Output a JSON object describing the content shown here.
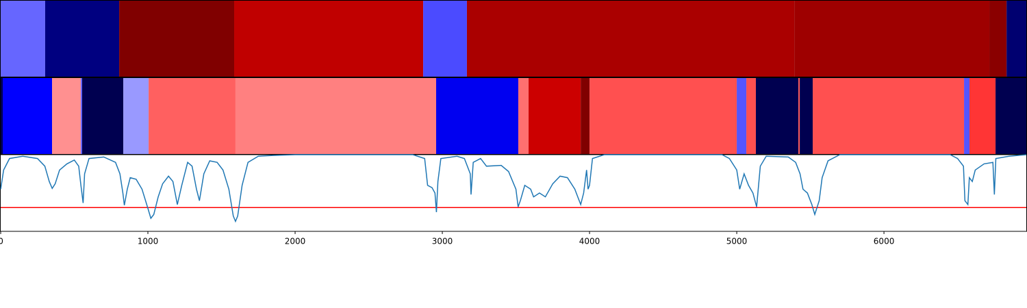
{
  "chart_data": {
    "type": "segmentation",
    "xlim": [
      0,
      6967
    ],
    "xticks": [
      0,
      1000,
      2000,
      3000,
      4000,
      5000,
      6000
    ],
    "rows": [
      {
        "segments": [
          {
            "start": 0,
            "end": 302,
            "color": "#6666ff"
          },
          {
            "start": 302,
            "end": 805,
            "color": "#000080"
          },
          {
            "start": 805,
            "end": 1586,
            "color": "#800000"
          },
          {
            "start": 1586,
            "end": 2870,
            "color": "#c00000"
          },
          {
            "start": 2870,
            "end": 3167,
            "color": "#4b4bff"
          },
          {
            "start": 3167,
            "end": 5391,
            "color": "#aa0000"
          },
          {
            "start": 5391,
            "end": 6716,
            "color": "#9e0000"
          },
          {
            "start": 6716,
            "end": 6833,
            "color": "#8a0000"
          },
          {
            "start": 6833,
            "end": 6967,
            "color": "#000070"
          }
        ]
      },
      {
        "segments": [
          {
            "start": 0,
            "end": 14,
            "color": "#000050"
          },
          {
            "start": 14,
            "end": 349,
            "color": "#0000ff"
          },
          {
            "start": 349,
            "end": 544,
            "color": "#ff9090"
          },
          {
            "start": 544,
            "end": 553,
            "color": "#6666ff"
          },
          {
            "start": 553,
            "end": 833,
            "color": "#000050"
          },
          {
            "start": 833,
            "end": 1005,
            "color": "#9999ff"
          },
          {
            "start": 1005,
            "end": 1595,
            "color": "#ff6060"
          },
          {
            "start": 1595,
            "end": 2958,
            "color": "#ff8080"
          },
          {
            "start": 2958,
            "end": 3516,
            "color": "#0000f0"
          },
          {
            "start": 3516,
            "end": 3586,
            "color": "#ff7070"
          },
          {
            "start": 3586,
            "end": 3940,
            "color": "#cc0000"
          },
          {
            "start": 3940,
            "end": 4000,
            "color": "#800000"
          },
          {
            "start": 4000,
            "end": 5000,
            "color": "#ff5050"
          },
          {
            "start": 5000,
            "end": 5065,
            "color": "#5555ff"
          },
          {
            "start": 5065,
            "end": 5130,
            "color": "#ff5050"
          },
          {
            "start": 5130,
            "end": 5419,
            "color": "#000050"
          },
          {
            "start": 5419,
            "end": 5428,
            "color": "#ff5050"
          },
          {
            "start": 5428,
            "end": 5516,
            "color": "#000050"
          },
          {
            "start": 5516,
            "end": 6544,
            "color": "#ff5050"
          },
          {
            "start": 6544,
            "end": 6581,
            "color": "#5555ff"
          },
          {
            "start": 6581,
            "end": 6758,
            "color": "#ff3535"
          },
          {
            "start": 6758,
            "end": 6967,
            "color": "#000050"
          }
        ]
      }
    ],
    "ylim": [
      0,
      1
    ],
    "line": {
      "color": "#1f77b4",
      "x": [
        0,
        20,
        60,
        150,
        250,
        300,
        330,
        350,
        370,
        400,
        450,
        500,
        530,
        545,
        560,
        570,
        600,
        700,
        780,
        810,
        830,
        840,
        860,
        880,
        920,
        960,
        1000,
        1020,
        1040,
        1070,
        1100,
        1140,
        1170,
        1200,
        1230,
        1270,
        1300,
        1330,
        1350,
        1380,
        1420,
        1470,
        1510,
        1550,
        1580,
        1595,
        1610,
        1640,
        1680,
        1750,
        1850,
        2000,
        2800,
        2880,
        2900,
        2930,
        2950,
        2960,
        2970,
        2990,
        3100,
        3150,
        3190,
        3195,
        3210,
        3260,
        3300,
        3400,
        3450,
        3500,
        3515,
        3530,
        3560,
        3600,
        3620,
        3660,
        3700,
        3750,
        3800,
        3850,
        3900,
        3920,
        3940,
        3960,
        3980,
        3990,
        4000,
        4020,
        4100,
        4900,
        4950,
        5000,
        5020,
        5050,
        5080,
        5110,
        5135,
        5160,
        5200,
        5350,
        5400,
        5430,
        5450,
        5480,
        5510,
        5530,
        5560,
        5580,
        5620,
        5700,
        6450,
        6500,
        6540,
        6550,
        6570,
        6580,
        6600,
        6620,
        6680,
        6740,
        6750,
        6760,
        6850,
        6967
      ],
      "values": [
        0.55,
        0.8,
        0.95,
        0.98,
        0.95,
        0.85,
        0.65,
        0.56,
        0.62,
        0.8,
        0.88,
        0.93,
        0.85,
        0.6,
        0.37,
        0.75,
        0.95,
        0.97,
        0.9,
        0.75,
        0.5,
        0.34,
        0.55,
        0.7,
        0.68,
        0.55,
        0.3,
        0.17,
        0.22,
        0.45,
        0.62,
        0.72,
        0.65,
        0.35,
        0.6,
        0.9,
        0.85,
        0.55,
        0.4,
        0.75,
        0.92,
        0.9,
        0.8,
        0.55,
        0.2,
        0.13,
        0.2,
        0.6,
        0.9,
        0.98,
        0.99,
        1,
        1,
        0.95,
        0.6,
        0.57,
        0.5,
        0.25,
        0.65,
        0.95,
        0.98,
        0.95,
        0.75,
        0.48,
        0.9,
        0.95,
        0.85,
        0.86,
        0.78,
        0.55,
        0.32,
        0.4,
        0.6,
        0.55,
        0.45,
        0.5,
        0.45,
        0.62,
        0.72,
        0.7,
        0.55,
        0.45,
        0.35,
        0.5,
        0.8,
        0.55,
        0.6,
        0.95,
        1,
        1,
        0.95,
        0.8,
        0.55,
        0.75,
        0.6,
        0.5,
        0.32,
        0.85,
        0.98,
        0.97,
        0.9,
        0.75,
        0.55,
        0.5,
        0.35,
        0.22,
        0.4,
        0.7,
        0.92,
        1,
        1,
        0.95,
        0.85,
        0.4,
        0.35,
        0.7,
        0.65,
        0.8,
        0.88,
        0.9,
        0.48,
        0.95,
        0.98,
        1
      ]
    },
    "threshold": {
      "value": 0.31,
      "color": "#ff0000"
    }
  }
}
